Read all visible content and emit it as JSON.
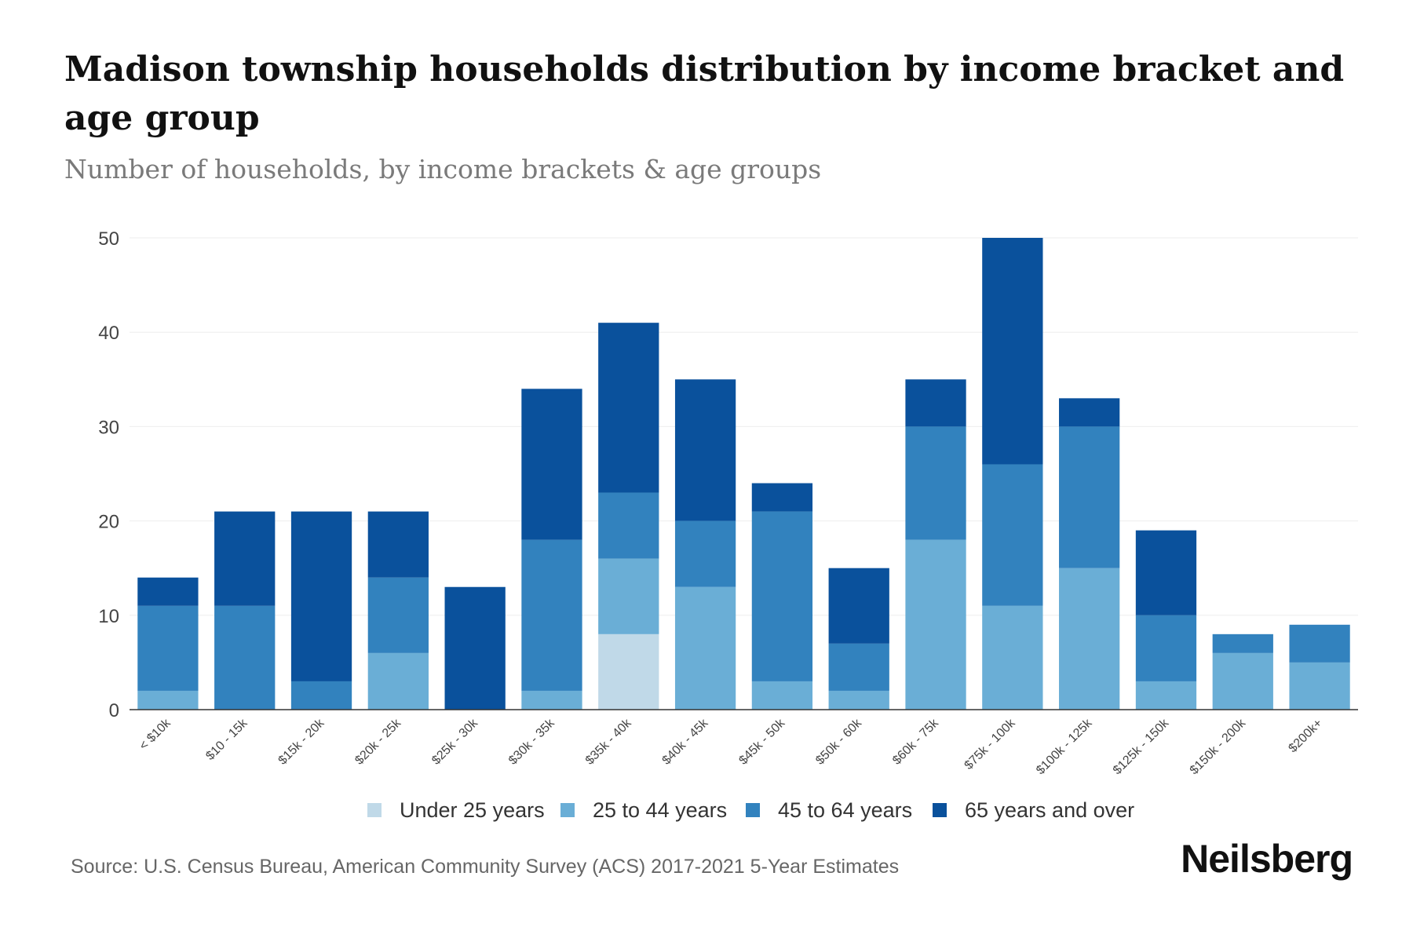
{
  "chart_data": {
    "type": "bar",
    "stacked": true,
    "title": "Madison township households distribution by income bracket and age group",
    "subtitle": "Number of households, by income brackets & age groups",
    "categories": [
      "< $10k",
      "$10 - 15k",
      "$15k - 20k",
      "$20k - 25k",
      "$25k - 30k",
      "$30k - 35k",
      "$35k - 40k",
      "$40k - 45k",
      "$45k - 50k",
      "$50k - 60k",
      "$60k - 75k",
      "$75k - 100k",
      "$100k - 125k",
      "$125k - 150k",
      "$150k - 200k",
      "$200k+"
    ],
    "series": [
      {
        "name": "Under 25 years",
        "color": "#c0d9e8",
        "values": [
          0,
          0,
          0,
          0,
          0,
          0,
          8,
          0,
          0,
          0,
          0,
          0,
          0,
          0,
          0,
          0
        ]
      },
      {
        "name": "25 to 44 years",
        "color": "#6aaed6",
        "values": [
          2,
          0,
          0,
          6,
          0,
          2,
          8,
          13,
          3,
          2,
          18,
          11,
          15,
          3,
          6,
          5
        ]
      },
      {
        "name": "45 to 64 years",
        "color": "#3282be",
        "values": [
          9,
          11,
          3,
          8,
          0,
          16,
          7,
          7,
          18,
          5,
          12,
          15,
          15,
          7,
          2,
          4
        ]
      },
      {
        "name": "65 years and over",
        "color": "#0a519c",
        "values": [
          3,
          10,
          18,
          7,
          13,
          16,
          18,
          15,
          3,
          8,
          5,
          24,
          3,
          9,
          0,
          0
        ]
      }
    ],
    "ylim": [
      0,
      50
    ],
    "yticks": [
      0,
      10,
      20,
      30,
      40,
      50
    ],
    "xlabel": "",
    "ylabel": "",
    "grid": true,
    "legend": "bottom"
  },
  "source": "Source: U.S. Census Bureau, American Community Survey (ACS) 2017-2021 5-Year Estimates",
  "brand": "Neilsberg"
}
